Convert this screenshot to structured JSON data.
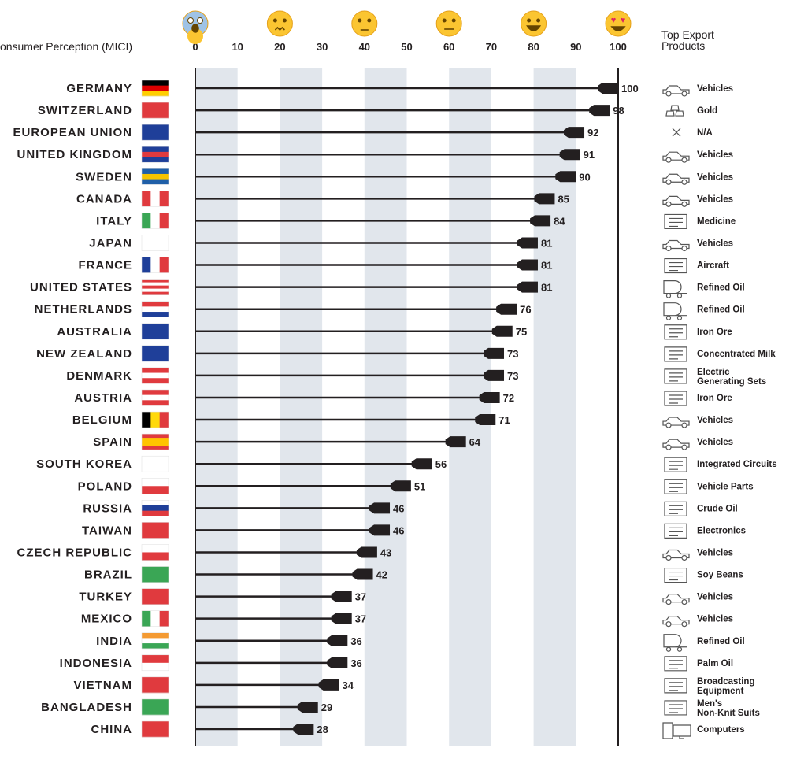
{
  "chart_data": {
    "type": "bar",
    "xlabel": "Consumer Perception (MICI)",
    "right_header": "Top Export\nProducts",
    "xlim": [
      0,
      100
    ],
    "xticks": [
      0,
      10,
      20,
      30,
      40,
      50,
      60,
      70,
      80,
      90,
      100
    ],
    "shaded_bands": [
      [
        0,
        10
      ],
      [
        20,
        30
      ],
      [
        40,
        50
      ],
      [
        60,
        70
      ],
      [
        80,
        90
      ]
    ],
    "emoji_scale": [
      {
        "at": 0,
        "face": "screaming"
      },
      {
        "at": 20,
        "face": "confounded"
      },
      {
        "at": 40,
        "face": "unamused"
      },
      {
        "at": 60,
        "face": "neutral"
      },
      {
        "at": 80,
        "face": "grinning"
      },
      {
        "at": 100,
        "face": "heart-eyes"
      }
    ],
    "colors": {
      "band": "#e1e6ec",
      "bar": "#231f20",
      "icon": "#555555"
    },
    "rows": [
      {
        "country": "GERMANY",
        "value": 100,
        "product": "Vehicles",
        "icon": "car-icon",
        "flag": {
          "dir": "h",
          "c": [
            "#000000",
            "#dd0000",
            "#ffce00"
          ]
        }
      },
      {
        "country": "SWITZERLAND",
        "value": 98,
        "product": "Gold",
        "icon": "gold-icon",
        "flag": {
          "dir": "h",
          "c": [
            "#e03a3e"
          ]
        }
      },
      {
        "country": "EUROPEAN UNION",
        "value": 92,
        "product": "N/A",
        "icon": "x-icon",
        "flag": {
          "dir": "h",
          "c": [
            "#1f3f99"
          ]
        }
      },
      {
        "country": "UNITED KINGDOM",
        "value": 91,
        "product": "Vehicles",
        "icon": "car-icon",
        "flag": {
          "dir": "h",
          "c": [
            "#1f3f99",
            "#e03a3e",
            "#1f3f99"
          ]
        }
      },
      {
        "country": "SWEDEN",
        "value": 90,
        "product": "Vehicles",
        "icon": "car-icon",
        "flag": {
          "dir": "h",
          "c": [
            "#1f5fa8",
            "#f5c400",
            "#1f5fa8"
          ]
        }
      },
      {
        "country": "CANADA",
        "value": 85,
        "product": "Vehicles",
        "icon": "car-icon",
        "flag": {
          "dir": "v",
          "c": [
            "#e03a3e",
            "#ffffff",
            "#e03a3e"
          ]
        }
      },
      {
        "country": "ITALY",
        "value": 84,
        "product": "Medicine",
        "icon": "medicine-icon",
        "flag": {
          "dir": "v",
          "c": [
            "#3aa655",
            "#ffffff",
            "#e03a3e"
          ]
        }
      },
      {
        "country": "JAPAN",
        "value": 81,
        "product": "Vehicles",
        "icon": "car-icon",
        "flag": {
          "dir": "h",
          "c": [
            "#ffffff"
          ]
        }
      },
      {
        "country": "FRANCE",
        "value": 81,
        "product": "Aircraft",
        "icon": "aircraft-icon",
        "flag": {
          "dir": "v",
          "c": [
            "#1f3f99",
            "#ffffff",
            "#e03a3e"
          ]
        }
      },
      {
        "country": "UNITED STATES",
        "value": 81,
        "product": "Refined Oil",
        "icon": "tanker-icon",
        "flag": {
          "dir": "h",
          "c": [
            "#e03a3e",
            "#ffffff",
            "#e03a3e",
            "#ffffff",
            "#e03a3e"
          ]
        }
      },
      {
        "country": "NETHERLANDS",
        "value": 76,
        "product": "Refined Oil",
        "icon": "tanker-icon",
        "flag": {
          "dir": "h",
          "c": [
            "#e03a3e",
            "#ffffff",
            "#1f3f99"
          ]
        }
      },
      {
        "country": "AUSTRALIA",
        "value": 75,
        "product": "Iron Ore",
        "icon": "ore-cart-icon",
        "flag": {
          "dir": "h",
          "c": [
            "#1f3f99"
          ]
        }
      },
      {
        "country": "NEW ZEALAND",
        "value": 73,
        "product": "Concentrated Milk",
        "icon": "milk-icon",
        "flag": {
          "dir": "h",
          "c": [
            "#1f3f99"
          ]
        }
      },
      {
        "country": "DENMARK",
        "value": 73,
        "product": "Electric\nGenerating Sets",
        "icon": "generator-icon",
        "flag": {
          "dir": "h",
          "c": [
            "#e03a3e",
            "#ffffff",
            "#e03a3e"
          ]
        }
      },
      {
        "country": "AUSTRIA",
        "value": 72,
        "product": "Iron Ore",
        "icon": "ore-cart-icon",
        "flag": {
          "dir": "h",
          "c": [
            "#e03a3e",
            "#ffffff",
            "#e03a3e"
          ]
        }
      },
      {
        "country": "BELGIUM",
        "value": 71,
        "product": "Vehicles",
        "icon": "car-icon",
        "flag": {
          "dir": "v",
          "c": [
            "#000000",
            "#ffd90c",
            "#e03a3e"
          ]
        }
      },
      {
        "country": "SPAIN",
        "value": 64,
        "product": "Vehicles",
        "icon": "car-icon",
        "flag": {
          "dir": "h",
          "c": [
            "#e03a3e",
            "#ffc400",
            "#ffc400",
            "#e03a3e"
          ]
        }
      },
      {
        "country": "SOUTH KOREA",
        "value": 56,
        "product": "Integrated Circuits",
        "icon": "chip-icon",
        "flag": {
          "dir": "h",
          "c": [
            "#ffffff"
          ]
        }
      },
      {
        "country": "POLAND",
        "value": 51,
        "product": "Vehicle Parts",
        "icon": "gear-car-icon",
        "flag": {
          "dir": "h",
          "c": [
            "#ffffff",
            "#e03a3e"
          ]
        }
      },
      {
        "country": "RUSSIA",
        "value": 46,
        "product": "Crude Oil",
        "icon": "oil-pump-icon",
        "flag": {
          "dir": "h",
          "c": [
            "#ffffff",
            "#1f3f99",
            "#e03a3e"
          ]
        }
      },
      {
        "country": "TAIWAN",
        "value": 46,
        "product": "Electronics",
        "icon": "electronics-icon",
        "flag": {
          "dir": "h",
          "c": [
            "#e03a3e"
          ]
        }
      },
      {
        "country": "CZECH REPUBLIC",
        "value": 43,
        "product": "Vehicles",
        "icon": "car-icon",
        "flag": {
          "dir": "h",
          "c": [
            "#ffffff",
            "#e03a3e"
          ]
        }
      },
      {
        "country": "BRAZIL",
        "value": 42,
        "product": "Soy Beans",
        "icon": "soy-icon",
        "flag": {
          "dir": "h",
          "c": [
            "#3aa655"
          ]
        }
      },
      {
        "country": "TURKEY",
        "value": 37,
        "product": "Vehicles",
        "icon": "car-icon",
        "flag": {
          "dir": "h",
          "c": [
            "#e03a3e"
          ]
        }
      },
      {
        "country": "MEXICO",
        "value": 37,
        "product": "Vehicles",
        "icon": "car-icon",
        "flag": {
          "dir": "v",
          "c": [
            "#3aa655",
            "#ffffff",
            "#e03a3e"
          ]
        }
      },
      {
        "country": "INDIA",
        "value": 36,
        "product": "Refined Oil",
        "icon": "tanker-icon",
        "flag": {
          "dir": "h",
          "c": [
            "#f49a32",
            "#ffffff",
            "#3aa655"
          ]
        }
      },
      {
        "country": "INDONESIA",
        "value": 36,
        "product": "Palm Oil",
        "icon": "palm-oil-icon",
        "flag": {
          "dir": "h",
          "c": [
            "#e03a3e",
            "#ffffff"
          ]
        }
      },
      {
        "country": "VIETNAM",
        "value": 34,
        "product": "Broadcasting\nEquipment",
        "icon": "satellite-icon",
        "flag": {
          "dir": "h",
          "c": [
            "#e03a3e"
          ]
        }
      },
      {
        "country": "BANGLADESH",
        "value": 29,
        "product": "Men's\nNon-Knit Suits",
        "icon": "suit-icon",
        "flag": {
          "dir": "h",
          "c": [
            "#3aa655"
          ]
        }
      },
      {
        "country": "CHINA",
        "value": 28,
        "product": "Computers",
        "icon": "computer-icon",
        "flag": {
          "dir": "h",
          "c": [
            "#e03a3e"
          ]
        }
      }
    ]
  }
}
